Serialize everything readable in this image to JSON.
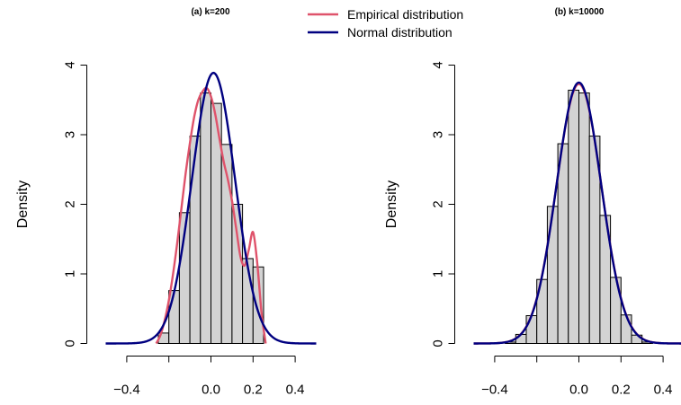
{
  "legend": {
    "items": [
      {
        "label": "Empirical distribution",
        "color": "#DF536B"
      },
      {
        "label": "Normal distribution",
        "color": "#000080"
      }
    ],
    "placement": "top-center"
  },
  "chart_data": [
    {
      "type": "histogram",
      "title": "(a) k=200",
      "ylabel": "Density",
      "xlabel": "",
      "xlim": [
        -0.5,
        0.5
      ],
      "ylim": [
        0,
        4
      ],
      "xticks": [
        -0.4,
        0.0,
        0.2,
        0.4
      ],
      "xtick_labels": [
        "−0.4",
        "0.0",
        "0.2",
        "0.4"
      ],
      "yticks": [
        0,
        1,
        2,
        3,
        4
      ],
      "ytick_labels": [
        "0",
        "1",
        "2",
        "3",
        "4"
      ],
      "bar_edges": [
        -0.25,
        -0.2,
        -0.15,
        -0.1,
        -0.05,
        0.0,
        0.05,
        0.1,
        0.15,
        0.2,
        0.25
      ],
      "bar_heights": [
        0.15,
        0.76,
        1.88,
        2.98,
        3.6,
        3.45,
        2.86,
        2.0,
        1.22,
        1.1
      ],
      "bar_fill": "#D3D3D3",
      "series": [
        {
          "name": "Empirical distribution",
          "color": "#DF536B",
          "x": [
            -0.26,
            -0.24,
            -0.22,
            -0.2,
            -0.18,
            -0.16,
            -0.14,
            -0.12,
            -0.1,
            -0.08,
            -0.06,
            -0.04,
            -0.02,
            0.0,
            0.02,
            0.04,
            0.06,
            0.08,
            0.1,
            0.12,
            0.14,
            0.16,
            0.18,
            0.2,
            0.22,
            0.24,
            0.26
          ],
          "y": [
            0.0,
            0.12,
            0.33,
            0.62,
            1.0,
            1.45,
            1.95,
            2.45,
            2.88,
            3.25,
            3.5,
            3.62,
            3.67,
            3.55,
            3.3,
            2.95,
            2.62,
            2.36,
            2.05,
            1.65,
            1.25,
            1.12,
            1.35,
            1.6,
            1.15,
            0.45,
            0.0
          ]
        },
        {
          "name": "Normal distribution",
          "color": "#000080",
          "mean": 0.012,
          "sd": 0.1026
        }
      ]
    },
    {
      "type": "histogram",
      "title": "(b) k=10000",
      "ylabel": "Density",
      "xlabel": "",
      "xlim": [
        -0.5,
        0.5
      ],
      "ylim": [
        0,
        4
      ],
      "xticks": [
        -0.4,
        0.0,
        0.2,
        0.4
      ],
      "xtick_labels": [
        "−0.4",
        "0.0",
        "0.2",
        "0.4"
      ],
      "yticks": [
        0,
        1,
        2,
        3,
        4
      ],
      "ytick_labels": [
        "0",
        "1",
        "2",
        "3",
        "4"
      ],
      "bar_edges": [
        -0.35,
        -0.3,
        -0.25,
        -0.2,
        -0.15,
        -0.1,
        -0.05,
        0.0,
        0.05,
        0.1,
        0.15,
        0.2,
        0.25,
        0.3,
        0.35
      ],
      "bar_heights": [
        0.02,
        0.13,
        0.4,
        0.92,
        1.97,
        2.87,
        3.64,
        3.6,
        2.98,
        1.84,
        0.95,
        0.41,
        0.12,
        0.02
      ],
      "bar_fill": "#D3D3D3",
      "series": [
        {
          "name": "Empirical distribution",
          "color": "#DF536B",
          "mean": 0.0,
          "sd": 0.107
        },
        {
          "name": "Normal distribution",
          "color": "#000080",
          "mean": 0.0,
          "sd": 0.1064
        }
      ]
    }
  ]
}
